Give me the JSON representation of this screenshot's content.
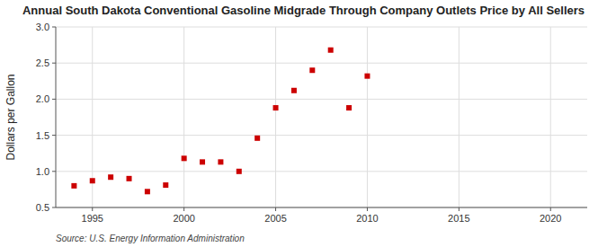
{
  "chart_data": {
    "type": "scatter",
    "title": "Annual South Dakota Conventional Gasoline Midgrade Through Company Outlets Price by All Sellers",
    "y_label": "Dollars per Gallon",
    "annotations": [
      "Source: U.S. Energy Information Administration"
    ],
    "x": [
      1994,
      1995,
      1996,
      1997,
      1998,
      1999,
      2000,
      2001,
      2002,
      2003,
      2004,
      2005,
      2006,
      2007,
      2008,
      2009,
      2010
    ],
    "values": [
      0.8,
      0.87,
      0.92,
      0.9,
      0.72,
      0.81,
      1.18,
      1.13,
      1.13,
      1.0,
      1.46,
      1.88,
      2.12,
      2.4,
      2.68,
      1.88,
      2.32
    ],
    "color": "#cc0000",
    "marker": "square",
    "xlim": [
      1993,
      2022
    ],
    "ylim": [
      0.5,
      3.0
    ],
    "xticks": [
      1995,
      2000,
      2005,
      2010,
      2015,
      2020
    ],
    "yticks": [
      0.5,
      {
        "value": 1.0,
        "label": "1.0"
      },
      1.5,
      {
        "value": 2.0,
        "label": "2.0"
      },
      2.5,
      {
        "value": 3.0,
        "label": "3.0"
      }
    ],
    "grid": true
  }
}
